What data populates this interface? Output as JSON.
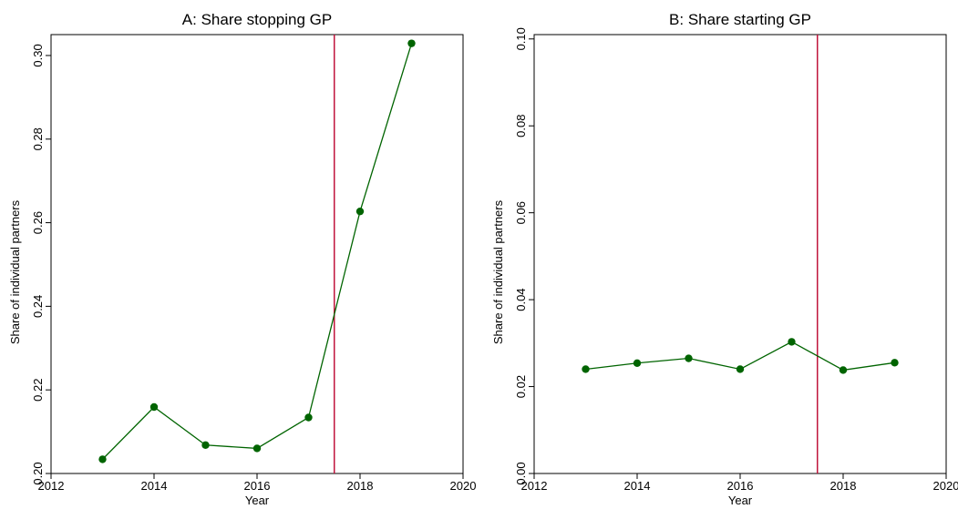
{
  "chart_data": [
    {
      "type": "line",
      "title": "A: Share stopping GP",
      "xlabel": "Year",
      "ylabel": "Share of individual partners",
      "xlim": [
        2012,
        2020
      ],
      "ylim": [
        0.2,
        0.305
      ],
      "xticks": [
        "2012",
        "2014",
        "2016",
        "2018",
        "2020"
      ],
      "yticks": [
        "0.20",
        "0.22",
        "0.24",
        "0.26",
        "0.28",
        "0.30"
      ],
      "vline": 2017.5,
      "series": [
        {
          "x": [
            2013,
            2014,
            2015,
            2016,
            2017,
            2018,
            2019
          ],
          "values": [
            0.2034,
            0.2159,
            0.2068,
            0.206,
            0.2134,
            0.2627,
            0.3029
          ]
        }
      ],
      "line_color": "#006400",
      "vline_color": "#c0143c",
      "grid": false
    },
    {
      "type": "line",
      "title": "B: Share starting GP",
      "xlabel": "Year",
      "ylabel": "Share of individual partners",
      "xlim": [
        2012,
        2020
      ],
      "ylim": [
        0.0,
        0.101
      ],
      "xticks": [
        "2012",
        "2014",
        "2016",
        "2018",
        "2020"
      ],
      "yticks": [
        "0.00",
        "0.02",
        "0.04",
        "0.06",
        "0.08",
        "0.10"
      ],
      "vline": 2017.5,
      "series": [
        {
          "x": [
            2013,
            2014,
            2015,
            2016,
            2017,
            2018,
            2019
          ],
          "values": [
            0.024,
            0.0254,
            0.0265,
            0.024,
            0.0303,
            0.0238,
            0.0255
          ]
        }
      ],
      "line_color": "#006400",
      "vline_color": "#c0143c",
      "grid": false
    }
  ]
}
